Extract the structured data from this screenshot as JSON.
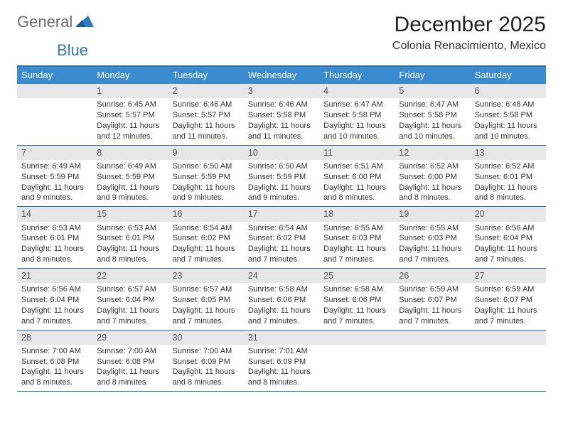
{
  "logo": {
    "word1": "General",
    "word2": "Blue"
  },
  "title": "December 2025",
  "subtitle": "Colonia Renacimiento, Mexico",
  "dayNames": [
    "Sunday",
    "Monday",
    "Tuesday",
    "Wednesday",
    "Thursday",
    "Friday",
    "Saturday"
  ],
  "colors": {
    "header_bg": "#3b8bd0",
    "rule": "#2f6fa8",
    "daynum_bg": "#e7e7e7",
    "logo_gray": "#6b6b6b",
    "logo_blue": "#2f7cc4"
  },
  "days": [
    {
      "n": "1",
      "sr": "6:45 AM",
      "ss": "5:57 PM",
      "dl": "11 hours and 12 minutes."
    },
    {
      "n": "2",
      "sr": "6:46 AM",
      "ss": "5:57 PM",
      "dl": "11 hours and 11 minutes."
    },
    {
      "n": "3",
      "sr": "6:46 AM",
      "ss": "5:58 PM",
      "dl": "11 hours and 11 minutes."
    },
    {
      "n": "4",
      "sr": "6:47 AM",
      "ss": "5:58 PM",
      "dl": "11 hours and 10 minutes."
    },
    {
      "n": "5",
      "sr": "6:47 AM",
      "ss": "5:58 PM",
      "dl": "11 hours and 10 minutes."
    },
    {
      "n": "6",
      "sr": "6:48 AM",
      "ss": "5:58 PM",
      "dl": "11 hours and 10 minutes."
    },
    {
      "n": "7",
      "sr": "6:49 AM",
      "ss": "5:59 PM",
      "dl": "11 hours and 9 minutes."
    },
    {
      "n": "8",
      "sr": "6:49 AM",
      "ss": "5:59 PM",
      "dl": "11 hours and 9 minutes."
    },
    {
      "n": "9",
      "sr": "6:50 AM",
      "ss": "5:59 PM",
      "dl": "11 hours and 9 minutes."
    },
    {
      "n": "10",
      "sr": "6:50 AM",
      "ss": "5:59 PM",
      "dl": "11 hours and 9 minutes."
    },
    {
      "n": "11",
      "sr": "6:51 AM",
      "ss": "6:00 PM",
      "dl": "11 hours and 8 minutes."
    },
    {
      "n": "12",
      "sr": "6:52 AM",
      "ss": "6:00 PM",
      "dl": "11 hours and 8 minutes."
    },
    {
      "n": "13",
      "sr": "6:52 AM",
      "ss": "6:01 PM",
      "dl": "11 hours and 8 minutes."
    },
    {
      "n": "14",
      "sr": "6:53 AM",
      "ss": "6:01 PM",
      "dl": "11 hours and 8 minutes."
    },
    {
      "n": "15",
      "sr": "6:53 AM",
      "ss": "6:01 PM",
      "dl": "11 hours and 8 minutes."
    },
    {
      "n": "16",
      "sr": "6:54 AM",
      "ss": "6:02 PM",
      "dl": "11 hours and 7 minutes."
    },
    {
      "n": "17",
      "sr": "6:54 AM",
      "ss": "6:02 PM",
      "dl": "11 hours and 7 minutes."
    },
    {
      "n": "18",
      "sr": "6:55 AM",
      "ss": "6:03 PM",
      "dl": "11 hours and 7 minutes."
    },
    {
      "n": "19",
      "sr": "6:55 AM",
      "ss": "6:03 PM",
      "dl": "11 hours and 7 minutes."
    },
    {
      "n": "20",
      "sr": "6:56 AM",
      "ss": "6:04 PM",
      "dl": "11 hours and 7 minutes."
    },
    {
      "n": "21",
      "sr": "6:56 AM",
      "ss": "6:04 PM",
      "dl": "11 hours and 7 minutes."
    },
    {
      "n": "22",
      "sr": "6:57 AM",
      "ss": "6:04 PM",
      "dl": "11 hours and 7 minutes."
    },
    {
      "n": "23",
      "sr": "6:57 AM",
      "ss": "6:05 PM",
      "dl": "11 hours and 7 minutes."
    },
    {
      "n": "24",
      "sr": "6:58 AM",
      "ss": "6:06 PM",
      "dl": "11 hours and 7 minutes."
    },
    {
      "n": "25",
      "sr": "6:58 AM",
      "ss": "6:06 PM",
      "dl": "11 hours and 7 minutes."
    },
    {
      "n": "26",
      "sr": "6:59 AM",
      "ss": "6:07 PM",
      "dl": "11 hours and 7 minutes."
    },
    {
      "n": "27",
      "sr": "6:59 AM",
      "ss": "6:07 PM",
      "dl": "11 hours and 7 minutes."
    },
    {
      "n": "28",
      "sr": "7:00 AM",
      "ss": "6:08 PM",
      "dl": "11 hours and 8 minutes."
    },
    {
      "n": "29",
      "sr": "7:00 AM",
      "ss": "6:08 PM",
      "dl": "11 hours and 8 minutes."
    },
    {
      "n": "30",
      "sr": "7:00 AM",
      "ss": "6:09 PM",
      "dl": "11 hours and 8 minutes."
    },
    {
      "n": "31",
      "sr": "7:01 AM",
      "ss": "6:09 PM",
      "dl": "11 hours and 8 minutes."
    }
  ],
  "layout": {
    "leading_blanks": 1,
    "trailing_blanks": 3
  },
  "labels": {
    "sunrise": "Sunrise:",
    "sunset": "Sunset:",
    "daylight": "Daylight:"
  }
}
